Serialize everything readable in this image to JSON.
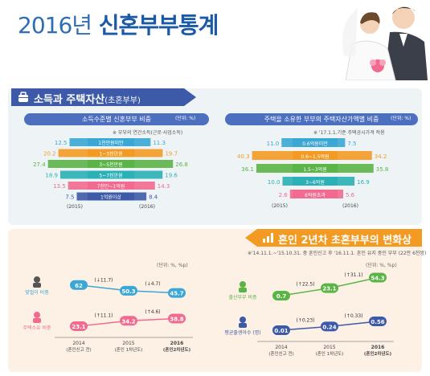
{
  "title": {
    "year": "2016년",
    "text": "신혼부부통계"
  },
  "section1": {
    "title": "소득과 주택자산",
    "subtitle": "(초혼부부)",
    "left": {
      "header": "소득수준별 신혼부부 비중",
      "unit": "(단위: %)",
      "note": "※ 부부의 연간소득(근로·사업소득)"
    },
    "right": {
      "header": "주택을 소유한 부부의 주택자산가액별 비중",
      "unit": "(단위: %)",
      "note": "※ '17.1.1.기준 주택공시가격 적용"
    }
  },
  "section2": {
    "title": "혼인 2년차 초혼부부의 변화상",
    "note": "※'14.11.1.~'15.10.31. 중 혼인신고 후 '16.11.1. 혼인 유지 중인 부부 (22만 6천쌍)",
    "left_unit": "(단위: %, %p)",
    "right_unit": "(단위: %, %p)",
    "x_labels": [
      {
        "year": "2014",
        "sub": "(혼인신고 전)"
      },
      {
        "year": "2015",
        "sub": "(혼인 1차년도)"
      },
      {
        "year": "2016",
        "sub": "(혼인2차년도)"
      }
    ]
  },
  "colors": {
    "primary": "#1b5aa6",
    "teal": "#3aa7d5",
    "orange": "#f39a22",
    "green": "#5bb546",
    "cyan": "#2ab0b6",
    "pink": "#f06b8f",
    "navy": "#3d5aa8",
    "bg": "#eef4f6",
    "section2_bg": "#fdf1e6"
  },
  "chart_data": [
    {
      "type": "bar",
      "title": "소득수준별 신혼부부 비중",
      "unit": "(단위: %)",
      "categories": [
        "1천만원미만",
        "1~3천만원",
        "3~5천만원",
        "5~7천만원",
        "7천만~1억원",
        "1억원이상"
      ],
      "series": [
        {
          "name": "(2015)",
          "values": [
            12.5,
            20.2,
            27.4,
            18.9,
            13.5,
            7.5
          ]
        },
        {
          "name": "(2016)",
          "values": [
            11.3,
            19.7,
            26.8,
            19.6,
            14.3,
            8.4
          ]
        }
      ]
    },
    {
      "type": "bar",
      "title": "주택을 소유한 부부의 주택자산가액별 비중",
      "unit": "(단위: %)",
      "categories": [
        "0.6억원미만",
        "0.6~1.5억원",
        "1.5~3억원",
        "3~6억원",
        "6억원초과"
      ],
      "series": [
        {
          "name": "(2015)",
          "values": [
            11.0,
            40.3,
            36.1,
            10.0,
            2.6
          ]
        },
        {
          "name": "(2016)",
          "values": [
            7.5,
            34.2,
            35.8,
            16.9,
            5.6
          ]
        }
      ]
    },
    {
      "type": "line",
      "title": "혼인 2년차 초혼부부의 변화상",
      "unit": "(단위: %, %p)",
      "x": [
        "2014",
        "2015",
        "2016"
      ],
      "series": [
        {
          "name": "맞벌이 비중",
          "values": [
            62.0,
            50.3,
            45.7
          ],
          "changes": [
            "(↓11.7)",
            "(↓4.7)"
          ]
        },
        {
          "name": "주택소유 비중",
          "values": [
            23.1,
            34.2,
            38.8
          ],
          "changes": [
            "(↑11.1)",
            "(↑4.6)"
          ]
        }
      ]
    },
    {
      "type": "line",
      "unit": "(단위: %, %p)",
      "x": [
        "2014",
        "2015",
        "2016"
      ],
      "series": [
        {
          "name": "출산부부 비중",
          "values": [
            0.7,
            23.1,
            54.3
          ],
          "changes": [
            "(↑22.5)",
            "(↑31.1)"
          ]
        },
        {
          "name": "평균출생아수 (명)",
          "values": [
            0.01,
            0.24,
            0.56
          ],
          "changes": [
            "(↑0.23)",
            "(↑0.33)"
          ]
        }
      ]
    }
  ]
}
